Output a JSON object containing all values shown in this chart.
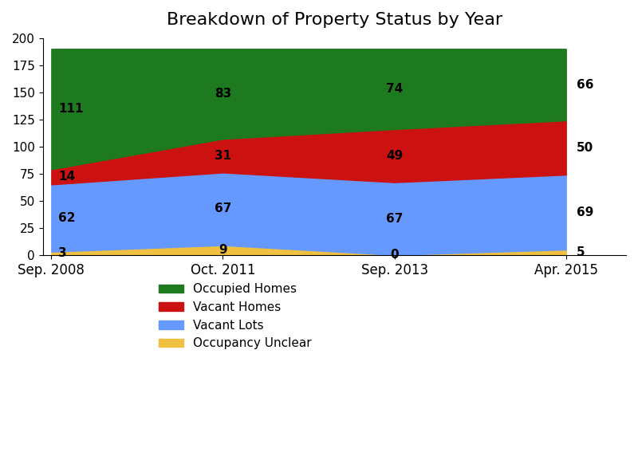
{
  "title": "Breakdown of Property Status by Year",
  "x_labels": [
    "Sep. 2008",
    "Oct. 2011",
    "Sep. 2013",
    "Apr. 2015"
  ],
  "x_positions": [
    0,
    1,
    2,
    3
  ],
  "categories": [
    "Occupancy Unclear",
    "Vacant Lots",
    "Vacant Homes",
    "Occupied Homes"
  ],
  "colors": [
    "#F0C040",
    "#6699FF",
    "#CC1111",
    "#1E7A1E"
  ],
  "values": {
    "Occupancy Unclear": [
      3,
      9,
      0,
      5
    ],
    "Vacant Lots": [
      62,
      67,
      67,
      69
    ],
    "Vacant Homes": [
      14,
      31,
      49,
      50
    ],
    "Occupied Homes": [
      111,
      83,
      74,
      66
    ]
  },
  "ylim": [
    0,
    200
  ],
  "yticks": [
    0,
    25,
    50,
    75,
    100,
    125,
    150,
    175,
    200
  ],
  "legend_labels": [
    "Occupied Homes",
    "Vacant Homes",
    "Vacant Lots",
    "Occupancy Unclear"
  ],
  "legend_colors": [
    "#1E7A1E",
    "#CC1111",
    "#6699FF",
    "#F0C040"
  ]
}
